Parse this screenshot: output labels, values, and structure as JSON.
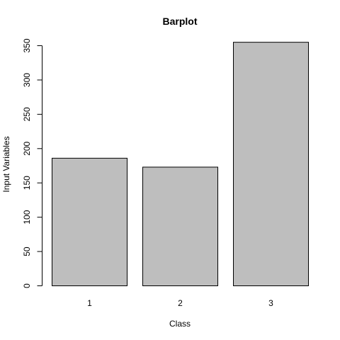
{
  "chart_data": {
    "type": "bar",
    "title": "Barplot",
    "xlabel": "Class",
    "ylabel": "Input Variables",
    "categories": [
      "1",
      "2",
      "3"
    ],
    "values": [
      186,
      173,
      355
    ],
    "ylim": [
      0,
      350
    ],
    "yticks": [
      0,
      50,
      100,
      150,
      200,
      250,
      300,
      350
    ],
    "colors": {
      "bar_fill": "#bebebe",
      "bar_stroke": "#000000"
    },
    "grid": false,
    "legend": "none"
  }
}
